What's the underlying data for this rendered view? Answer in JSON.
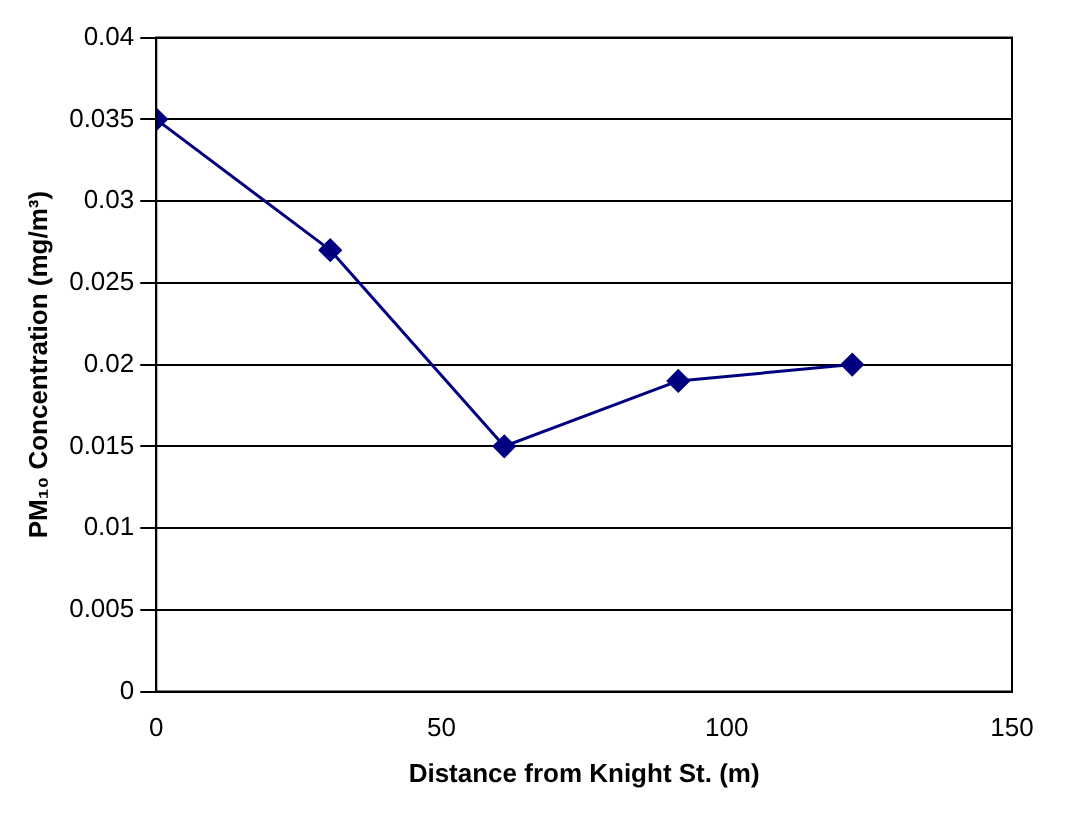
{
  "chart_data": {
    "type": "line",
    "xlabel": "Distance from Knight St. (m)",
    "ylabel": "PM₁₀ Concentration (mg/m³)",
    "x": [
      0,
      30.5,
      61,
      91.5,
      122
    ],
    "series": [
      {
        "color": "#000080",
        "values": [
          0.035,
          0.027,
          0.015,
          0.019,
          0.02
        ]
      }
    ],
    "xlim": [
      0,
      150
    ],
    "xticks": [
      0,
      50,
      100,
      150
    ],
    "ylim": [
      0,
      0.04
    ],
    "yticks": [
      0,
      0.005,
      0.01,
      0.015,
      0.02,
      0.025,
      0.03,
      0.035,
      0.04
    ],
    "grid": "y",
    "legend": false,
    "marker": "diamond",
    "line_style": "solid"
  }
}
